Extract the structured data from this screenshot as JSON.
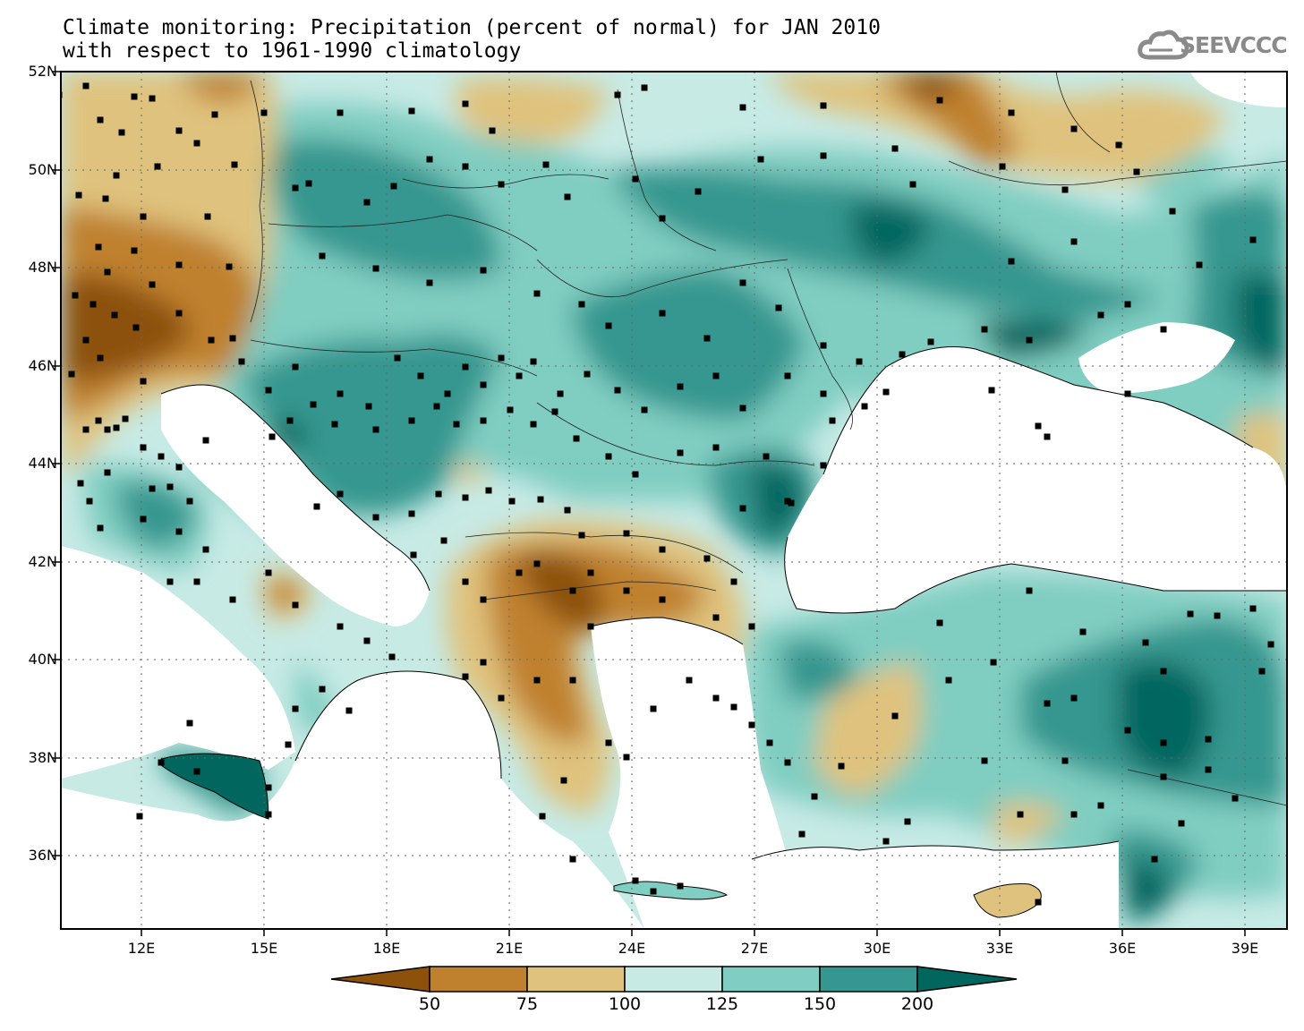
{
  "title": {
    "line1": "Climate monitoring: Precipitation (percent of normal) for JAN 2010",
    "line2": "with respect to 1961-1990 climatology"
  },
  "logo": {
    "text": "SEEVCCC",
    "icon": "cloud-icon"
  },
  "axes": {
    "latitudes": [
      "52N",
      "50N",
      "48N",
      "46N",
      "44N",
      "42N",
      "40N",
      "38N",
      "36N"
    ],
    "longitudes": [
      "12E",
      "15E",
      "18E",
      "21E",
      "24E",
      "27E",
      "30E",
      "33E",
      "36E",
      "39E"
    ],
    "lat_range": [
      34.5,
      52
    ],
    "lon_range": [
      10,
      40
    ]
  },
  "legend": {
    "labels": [
      "50",
      "75",
      "100",
      "125",
      "150",
      "200"
    ],
    "classes": [
      {
        "range": "<50",
        "color": "#8c510a"
      },
      {
        "range": "50-75",
        "color": "#bf812d"
      },
      {
        "range": "75-100",
        "color": "#dfc27d"
      },
      {
        "range": "100-125",
        "color": "#c7eae5"
      },
      {
        "range": "125-150",
        "color": "#80cdc1"
      },
      {
        "range": "150-200",
        "color": "#35978f"
      },
      {
        "range": ">200",
        "color": "#01665e"
      }
    ]
  }
}
